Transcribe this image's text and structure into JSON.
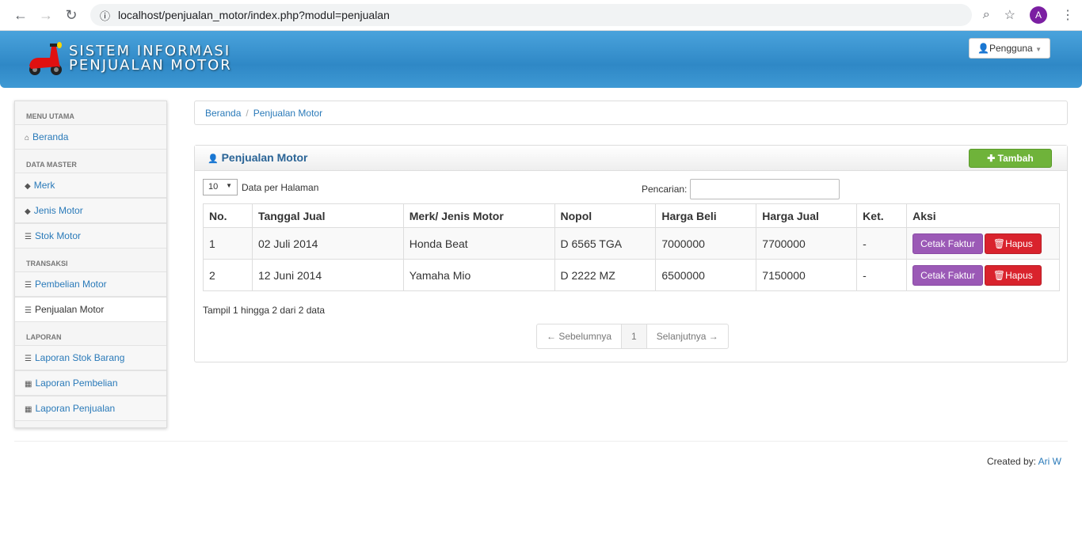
{
  "browser": {
    "url": "localhost/penjualan_motor/index.php?modul=penjualan",
    "avatar": "A"
  },
  "header": {
    "title_line1": "SISTEM INFORMASI",
    "title_line2": "PENJUALAN MOTOR",
    "user_menu": "Pengguna"
  },
  "sidebar": {
    "h1": "MENU UTAMA",
    "beranda": "Beranda",
    "h2": "DATA MASTER",
    "merk": "Merk",
    "jenis": "Jenis Motor",
    "stok": "Stok Motor",
    "h3": "TRANSAKSI",
    "pembelian": "Pembelian Motor",
    "penjualan": "Penjualan Motor",
    "h4": "LAPORAN",
    "lap_stok": "Laporan Stok Barang",
    "lap_beli": "Laporan Pembelian",
    "lap_jual": "Laporan Penjualan"
  },
  "breadcrumb": {
    "home": "Beranda",
    "current": "Penjualan Motor"
  },
  "panel": {
    "title": "Penjualan Motor",
    "add_label": "Tambah",
    "per_page": "10",
    "per_page_label": "Data per Halaman",
    "search_label": "Pencarian:",
    "search_value": ""
  },
  "table": {
    "headers": [
      "No.",
      "Tanggal Jual",
      "Merk/ Jenis Motor",
      "Nopol",
      "Harga Beli",
      "Harga Jual",
      "Ket.",
      "Aksi"
    ],
    "rows": [
      [
        "1",
        "02 Juli 2014",
        "Honda Beat",
        "D 6565 TGA",
        "7000000",
        "7700000",
        "-"
      ],
      [
        "2",
        "12 Juni 2014",
        "Yamaha Mio",
        "D 2222 MZ",
        "6500000",
        "7150000",
        "-"
      ]
    ],
    "print_label": "Cetak Faktur",
    "delete_label": "Hapus"
  },
  "info": "Tampil 1 hingga 2 dari 2 data",
  "pagination": {
    "prev": "← Sebelumnya",
    "page": "1",
    "next": "Selanjutnya →"
  },
  "footer": {
    "prefix": "Created by:",
    "author": "Ari W"
  }
}
